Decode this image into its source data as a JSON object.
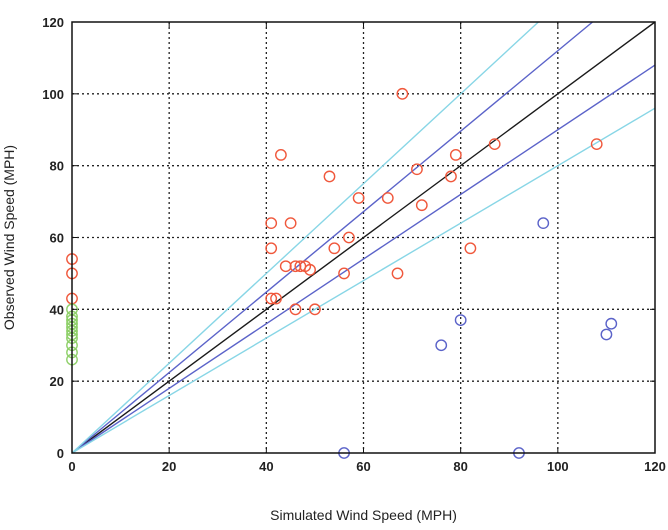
{
  "chart_data": {
    "type": "scatter",
    "xlabel": "Simulated Wind Speed (MPH)",
    "ylabel": "Observed Wind Speed (MPH)",
    "xlim": [
      0,
      120
    ],
    "ylim": [
      0,
      120
    ],
    "xticks": [
      "0",
      "20",
      "40",
      "60",
      "80",
      "100",
      "120"
    ],
    "yticks": [
      "0",
      "20",
      "40",
      "60",
      "80",
      "100",
      "120"
    ],
    "grid": true,
    "grid_style": "dotted",
    "reference_lines": [
      {
        "slope": 1.0,
        "color": "#1a1a1a"
      },
      {
        "slope": 1.12,
        "color": "#5b63c9"
      },
      {
        "slope": 0.9,
        "color": "#5b63c9"
      },
      {
        "slope": 1.25,
        "color": "#88d6e6"
      },
      {
        "slope": 0.8,
        "color": "#88d6e6"
      }
    ],
    "series": [
      {
        "color": "#f0583c",
        "points": [
          [
            0,
            54
          ],
          [
            0,
            50
          ],
          [
            0,
            43
          ],
          [
            41,
            64
          ],
          [
            41,
            57
          ],
          [
            41,
            43
          ],
          [
            42,
            43
          ],
          [
            43,
            83
          ],
          [
            44,
            52
          ],
          [
            45,
            64
          ],
          [
            46,
            40
          ],
          [
            46,
            52
          ],
          [
            47,
            52
          ],
          [
            48,
            52
          ],
          [
            49,
            51
          ],
          [
            50,
            40
          ],
          [
            53,
            77
          ],
          [
            54,
            57
          ],
          [
            56,
            50
          ],
          [
            57,
            60
          ],
          [
            59,
            71
          ],
          [
            65,
            71
          ],
          [
            67,
            50
          ],
          [
            68,
            100
          ],
          [
            71,
            79
          ],
          [
            72,
            69
          ],
          [
            78,
            77
          ],
          [
            79,
            83
          ],
          [
            82,
            57
          ],
          [
            87,
            86
          ],
          [
            108,
            86
          ]
        ]
      },
      {
        "color": "#5b63c9",
        "points": [
          [
            56,
            0
          ],
          [
            76,
            30
          ],
          [
            80,
            37
          ],
          [
            92,
            0
          ],
          [
            97,
            64
          ],
          [
            110,
            33
          ],
          [
            111,
            36
          ]
        ]
      },
      {
        "color": "#8fd06a",
        "points": [
          [
            0,
            40
          ],
          [
            0,
            38
          ],
          [
            0,
            37
          ],
          [
            0,
            36
          ],
          [
            0,
            35
          ],
          [
            0,
            34
          ],
          [
            0,
            33
          ],
          [
            0,
            32
          ],
          [
            0,
            30
          ],
          [
            0,
            28
          ],
          [
            0,
            26
          ]
        ]
      }
    ]
  }
}
